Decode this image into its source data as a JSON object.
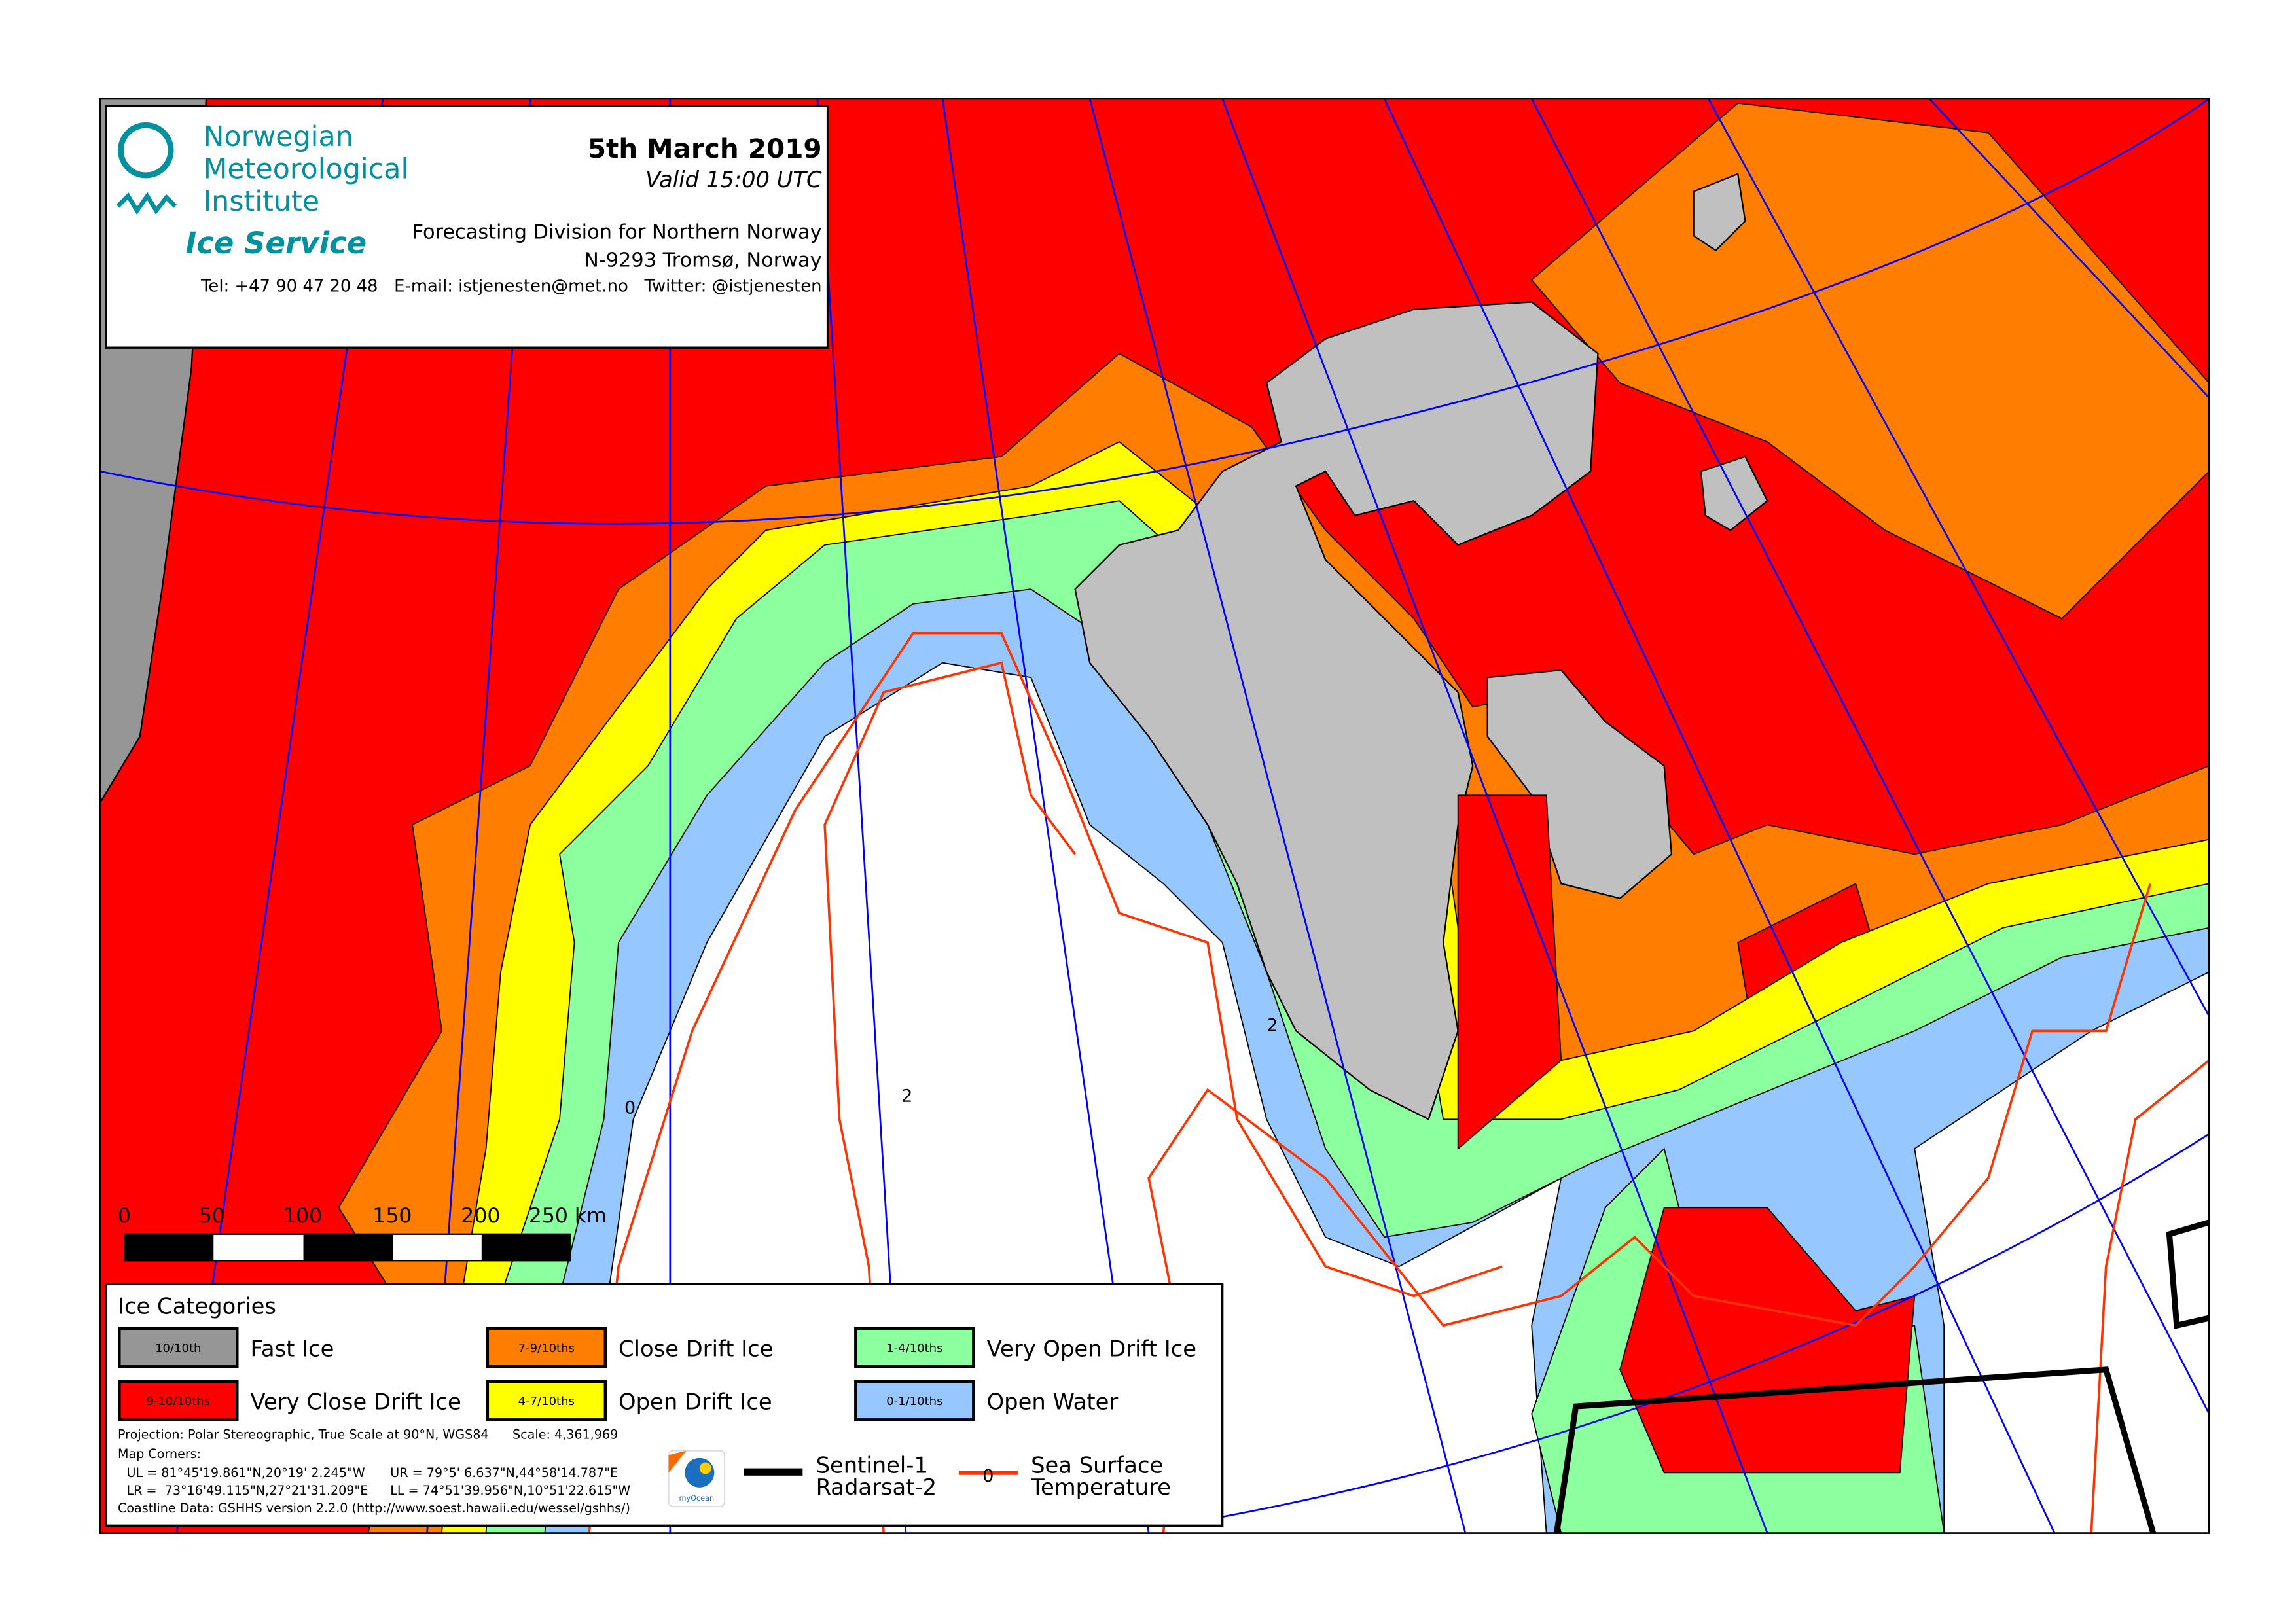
{
  "header": {
    "institute_lines": [
      "Norwegian",
      "Meteorological",
      "Institute"
    ],
    "service": "Ice Service",
    "date": "5th March 2019",
    "valid": "Valid 15:00 UTC",
    "division": "Forecasting Division for Northern Norway",
    "address": "N-9293 Tromsø, Norway",
    "contact": "Tel: +47 90 47 20 48   E-mail: istjenesten@met.no   Twitter: @istjenesten"
  },
  "scale_bar": {
    "labels": [
      "0",
      "50",
      "100",
      "150",
      "200",
      "250 km"
    ]
  },
  "legend": {
    "title": "Ice Categories",
    "categories": [
      {
        "code": "10/10th",
        "label": "Fast Ice",
        "color": "#969696"
      },
      {
        "code": "9-10/10ths",
        "label": "Very Close Drift Ice",
        "color": "#ff0000"
      },
      {
        "code": "7-9/10ths",
        "label": "Close Drift Ice",
        "color": "#ff7d00"
      },
      {
        "code": "4-7/10ths",
        "label": "Open Drift Ice",
        "color": "#ffff00"
      },
      {
        "code": "1-4/10ths",
        "label": "Very Open Drift Ice",
        "color": "#8cff9f"
      },
      {
        "code": "0-1/10ths",
        "label": "Open Water",
        "color": "#96c8ff"
      }
    ],
    "projection": "Projection: Polar Stereographic, True Scale at 90°N, WGS84",
    "scale": "Scale: 4,361,969",
    "corners_title": "Map Corners:",
    "ul": "UL = 81°45'19.861\"N,20°19' 2.245\"W",
    "ur": "UR = 79°5' 6.637\"N,44°58'14.787\"E",
    "lr": "LR =  73°16'49.115\"N,27°21'31.209\"E",
    "ll": "LL = 74°51'39.956\"N,10°51'22.615\"W",
    "coastline": "Coastline Data: GSHHS version 2.2.0 (http://www.soest.hawaii.edu/wessel/gshhs/)",
    "satellite_lines": [
      "Sentinel-1",
      "Radarsat-2"
    ],
    "sst_lines": [
      "Sea Surface",
      "Temperature"
    ],
    "sst_symbol": "0",
    "logo": "myOcean"
  },
  "map": {
    "sst_labels": [
      "0",
      "2",
      "2"
    ],
    "colors": {
      "meridian": "#0000ff",
      "sst": "#ff3300",
      "land": "#c0c0c0"
    }
  }
}
